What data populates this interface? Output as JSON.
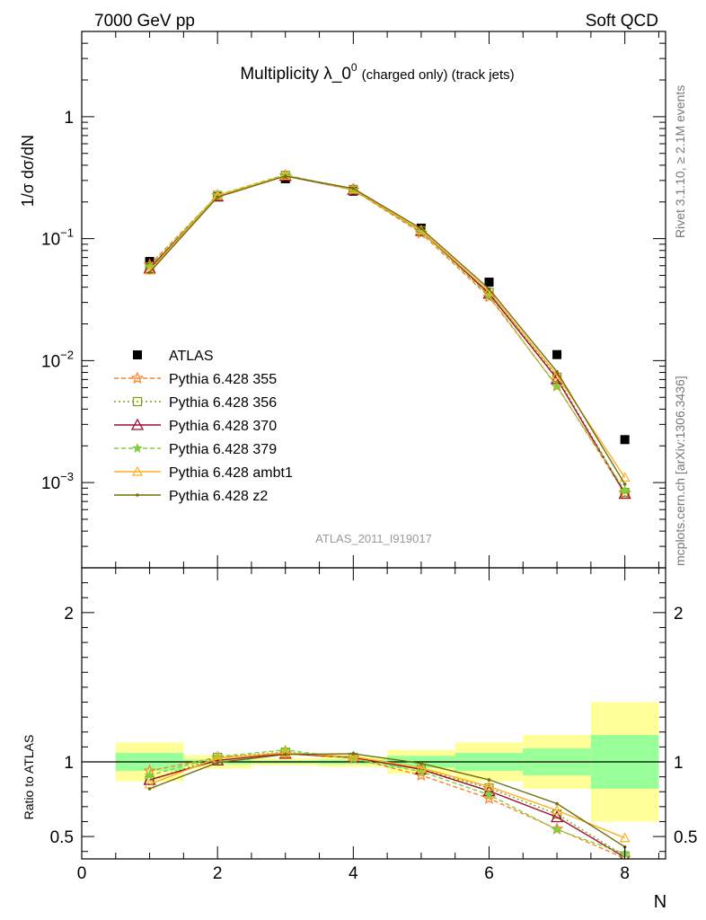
{
  "header": {
    "left": "7000 GeV pp",
    "right": "Soft QCD"
  },
  "side_labels": {
    "rivet": "Rivet 3.1.10, ≥ 2.1M events",
    "source": "mcplots.cern.ch [arXiv:1306.3436]"
  },
  "analysis_id": "ATLAS_2011_I919017",
  "colors": {
    "data": "#000000",
    "p355": "#ff7f1e",
    "p356": "#7f9f1e",
    "p370": "#9f0f2f",
    "p379": "#7fcf3f",
    "ambt1": "#ffaf1e",
    "z2": "#6f6f0f",
    "band_inner": "#99ff99",
    "band_outer": "#ffff99"
  },
  "chart_data": [
    {
      "type": "line",
      "title": "Multiplicity λ_0",
      "title_sup": "0",
      "title_small": "(charged only) (track jets)",
      "ylabel": "1/σ dσ/dN",
      "yscale": "log",
      "ylim": [
        0.0002,
        5
      ],
      "yticks": [
        "1",
        "10",
        "10",
        "10"
      ],
      "ytick_exps": [
        "",
        "−1",
        "−2",
        "−3"
      ],
      "yticks_values": [
        1,
        0.1,
        0.01,
        0.001
      ],
      "xlim": [
        0,
        8.6
      ],
      "legend_position": "middle-left",
      "x": [
        1,
        2,
        3,
        4,
        5,
        6,
        7,
        8
      ],
      "series": [
        {
          "name": "ATLAS",
          "key": "data",
          "values": [
            0.065,
            0.22,
            0.31,
            0.245,
            0.122,
            0.044,
            0.0112,
            0.00225
          ]
        },
        {
          "name": "Pythia 6.428 355",
          "key": "p355",
          "values": [
            0.061,
            0.226,
            0.327,
            0.251,
            0.111,
            0.0333,
            0.0062,
            0.00082
          ]
        },
        {
          "name": "Pythia 6.428 356",
          "key": "p356",
          "values": [
            0.057,
            0.226,
            0.33,
            0.253,
            0.116,
            0.0363,
            0.0073,
            0.00083
          ]
        },
        {
          "name": "Pythia 6.428 370",
          "key": "p370",
          "values": [
            0.057,
            0.222,
            0.327,
            0.252,
            0.116,
            0.0354,
            0.0071,
            0.00081
          ]
        },
        {
          "name": "Pythia 6.428 379",
          "key": "p379",
          "values": [
            0.059,
            0.228,
            0.335,
            0.25,
            0.114,
            0.0342,
            0.0061,
            0.00086
          ]
        },
        {
          "name": "Pythia 6.428 ambt1",
          "key": "ambt1",
          "values": [
            0.055,
            0.225,
            0.329,
            0.253,
            0.117,
            0.0368,
            0.0076,
            0.0011
          ]
        },
        {
          "name": "Pythia 6.428 z2",
          "key": "z2",
          "values": [
            0.053,
            0.219,
            0.326,
            0.258,
            0.121,
            0.0387,
            0.0081,
            0.00097
          ]
        }
      ]
    },
    {
      "type": "line",
      "ylabel": "Ratio to ATLAS",
      "xlabel": "N",
      "ylim": [
        0.35,
        2.3
      ],
      "yticks": [
        0.5,
        1,
        2
      ],
      "xlim": [
        0,
        8.6
      ],
      "xticks": [
        0,
        2,
        4,
        6,
        8
      ],
      "x": [
        1,
        2,
        3,
        4,
        5,
        6,
        7,
        8
      ],
      "bands": [
        {
          "x": [
            0.5,
            1.5
          ],
          "inner": [
            0.94,
            1.06
          ],
          "outer": [
            0.87,
            1.13
          ]
        },
        {
          "x": [
            1.5,
            2.5
          ],
          "inner": [
            0.985,
            1.015
          ],
          "outer": [
            0.955,
            1.045
          ]
        },
        {
          "x": [
            2.5,
            3.5
          ],
          "inner": [
            0.99,
            1.01
          ],
          "outer": [
            0.975,
            1.025
          ]
        },
        {
          "x": [
            3.5,
            4.5
          ],
          "inner": [
            0.985,
            1.015
          ],
          "outer": [
            0.965,
            1.035
          ]
        },
        {
          "x": [
            4.5,
            5.5
          ],
          "inner": [
            0.96,
            1.04
          ],
          "outer": [
            0.92,
            1.08
          ]
        },
        {
          "x": [
            5.5,
            6.5
          ],
          "inner": [
            0.94,
            1.06
          ],
          "outer": [
            0.87,
            1.13
          ]
        },
        {
          "x": [
            6.5,
            7.5
          ],
          "inner": [
            0.91,
            1.09
          ],
          "outer": [
            0.82,
            1.18
          ]
        },
        {
          "x": [
            7.5,
            8.5
          ],
          "inner": [
            0.82,
            1.18
          ],
          "outer": [
            0.6,
            1.4
          ]
        }
      ],
      "series": [
        {
          "name": "Pythia 6.428 355",
          "key": "p355",
          "values": [
            0.94,
            1.03,
            1.055,
            1.025,
            0.91,
            0.755,
            0.55,
            0.355
          ]
        },
        {
          "name": "Pythia 6.428 356",
          "key": "p356",
          "values": [
            0.875,
            1.03,
            1.065,
            1.03,
            0.95,
            0.825,
            0.65,
            0.37
          ]
        },
        {
          "name": "Pythia 6.428 370",
          "key": "p370",
          "values": [
            0.88,
            1.01,
            1.055,
            1.03,
            0.95,
            0.805,
            0.63,
            0.36
          ]
        },
        {
          "name": "Pythia 6.428 379",
          "key": "p379",
          "values": [
            0.91,
            1.035,
            1.08,
            1.02,
            0.935,
            0.78,
            0.545,
            0.385
          ]
        },
        {
          "name": "Pythia 6.428 ambt1",
          "key": "ambt1",
          "values": [
            0.85,
            1.025,
            1.06,
            1.035,
            0.96,
            0.835,
            0.675,
            0.49
          ]
        },
        {
          "name": "Pythia 6.428 z2",
          "key": "z2",
          "values": [
            0.82,
            0.995,
            1.05,
            1.055,
            0.99,
            0.88,
            0.72,
            0.43
          ]
        }
      ]
    }
  ]
}
